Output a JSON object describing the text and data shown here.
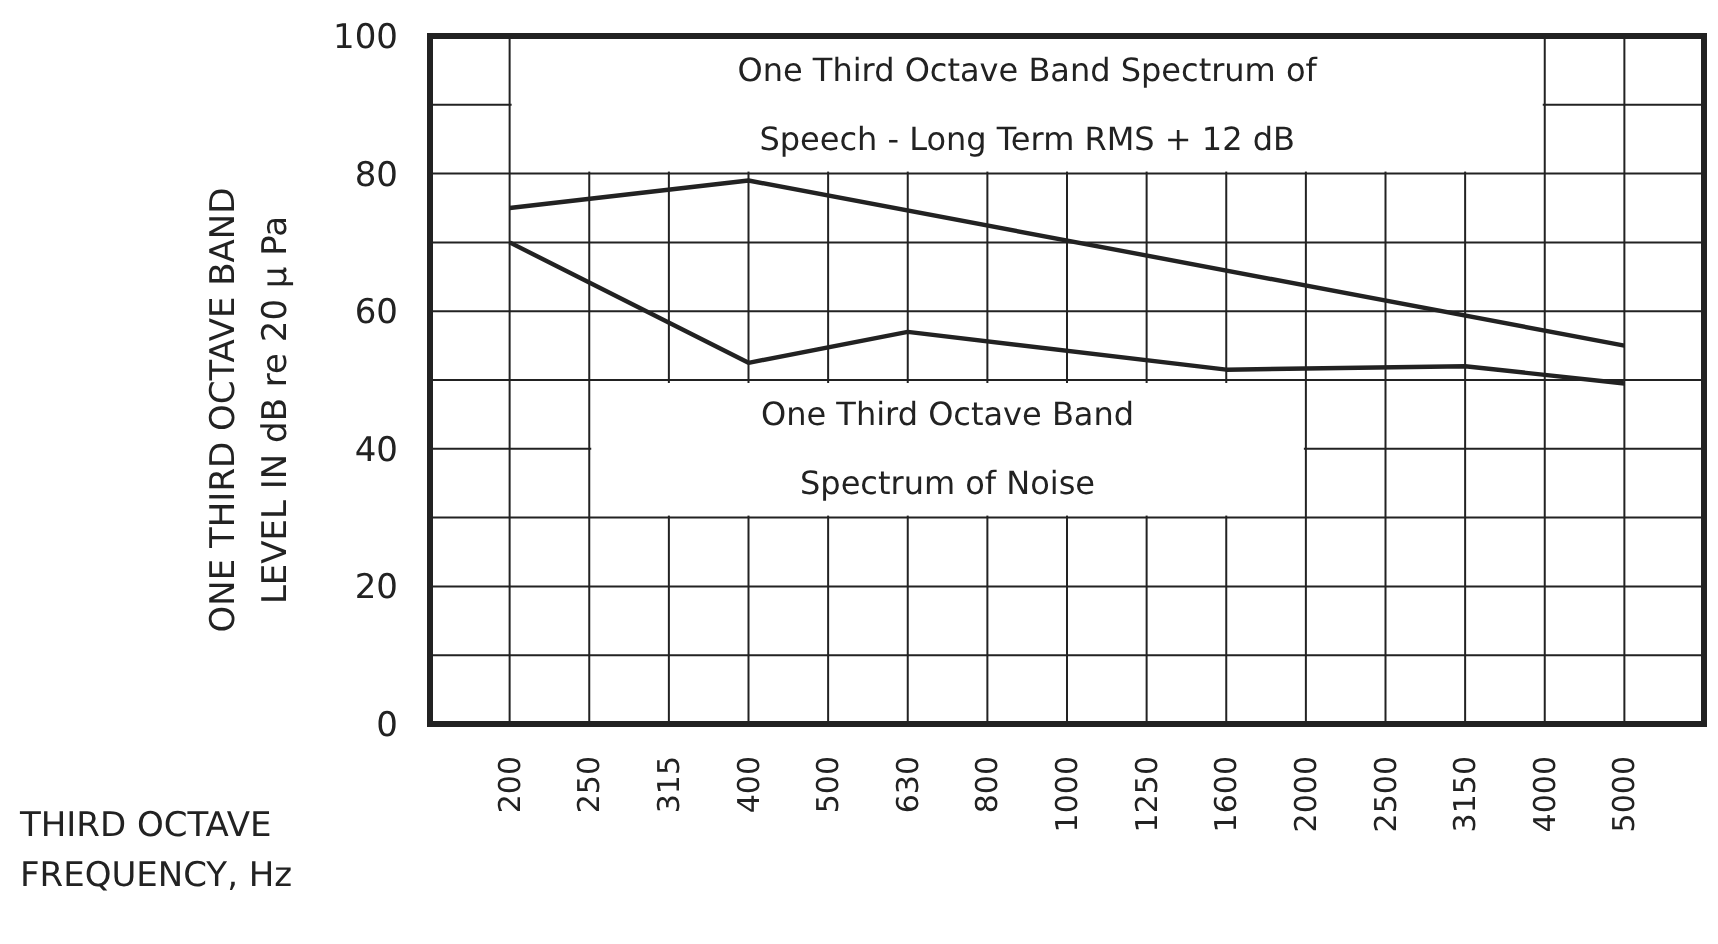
{
  "chart_data": {
    "type": "line",
    "xlabel": "THIRD OCTAVE FREQUENCY, Hz",
    "ylabel": "ONE THIRD OCTAVE BAND LEVEL IN dB re 20 μ Pa",
    "categories": [
      "200",
      "250",
      "315",
      "400",
      "500",
      "630",
      "800",
      "1000",
      "1250",
      "1600",
      "2000",
      "2500",
      "3150",
      "4000",
      "5000"
    ],
    "series": [
      {
        "name": "One Third Octave Band Spectrum of Speech -  Long Term RMS + 12 dB",
        "color": "#222222",
        "values": [
          75,
          null,
          null,
          79,
          null,
          null,
          null,
          null,
          null,
          null,
          null,
          null,
          null,
          null,
          55
        ]
      },
      {
        "name": "One Third Octave Band Spectrum of Noise",
        "color": "#222222",
        "values": [
          70,
          null,
          null,
          52.5,
          null,
          57,
          null,
          null,
          null,
          51.5,
          null,
          null,
          52,
          null,
          49.5
        ]
      }
    ],
    "ylim": [
      0,
      100
    ],
    "yticks": [
      0,
      {
        "value": 10,
        "label": null
      },
      20,
      {
        "value": 30,
        "label": null
      },
      40,
      {
        "value": 50,
        "label": null
      },
      60,
      {
        "value": 70,
        "label": null
      },
      80,
      {
        "value": 90,
        "label": null
      },
      100
    ],
    "grid": true,
    "marker": "none",
    "line_style": "solid"
  }
}
